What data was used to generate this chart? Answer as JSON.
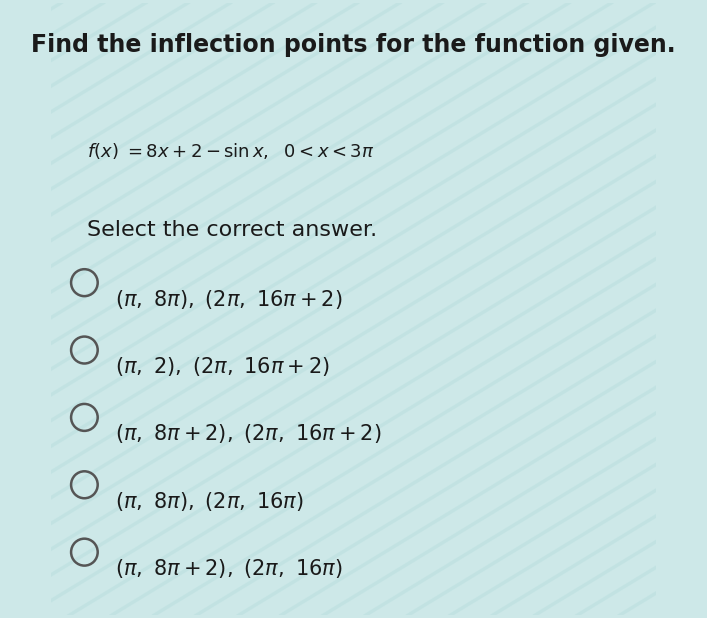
{
  "title": "Find the inflection points for the function given.",
  "select_text": "Select the correct answer.",
  "options_math": [
    "$(\\pi, 8\\pi)$, $(2\\pi, 16\\pi+2)$",
    "$(\\pi, 2)$, $(2\\pi, 16\\pi+2)$",
    "$(\\pi, 8\\pi+2)$, $(2\\pi, 16\\pi+2)$",
    "$(\\pi, 8\\pi)$, $(2\\pi, 16\\pi)$",
    "$(\\pi, 8\\pi+2)$, $(2\\pi, 16\\pi)$"
  ],
  "bg_color": "#cde8e8",
  "stripe_color": "#b8dede",
  "title_fontsize": 17,
  "function_fontsize": 13,
  "select_fontsize": 16,
  "option_fontsize": 15,
  "text_color": "#1a1a1a"
}
